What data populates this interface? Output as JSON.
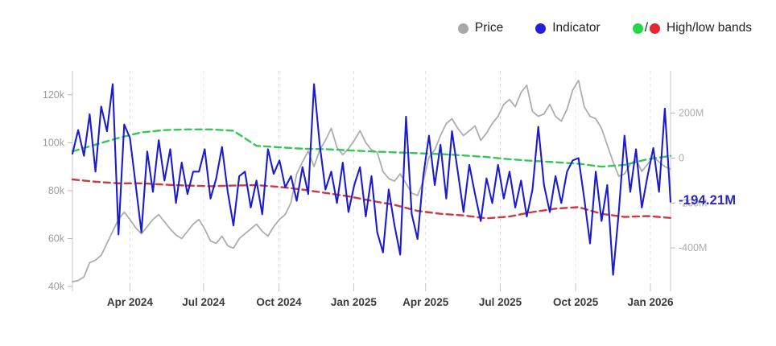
{
  "legend": {
    "items": [
      {
        "label": "Price",
        "color": "#a8a8a8"
      },
      {
        "label": "Indicator",
        "color": "#2121dd"
      },
      {
        "label": "High/low bands",
        "color_high": "#23d847",
        "color_low": "#ea2330",
        "separator": "/"
      }
    ]
  },
  "current_value": {
    "text": "-194.21M",
    "color": "#2a2ab5"
  },
  "chart_data": {
    "type": "line",
    "title": "",
    "xlabel": "",
    "ylabel_left": "Price",
    "ylabel_right": "Indicator",
    "x_unit": "weeks_from_start",
    "weeks": 105,
    "x_axis": {
      "ticks": [
        {
          "week": 10.0,
          "label": "Apr 2024"
        },
        {
          "week": 22.8,
          "label": "Jul 2024"
        },
        {
          "week": 35.9,
          "label": "Oct 2024"
        },
        {
          "week": 48.9,
          "label": "Jan 2025"
        },
        {
          "week": 61.4,
          "label": "Apr 2025"
        },
        {
          "week": 74.4,
          "label": "Jul 2025"
        },
        {
          "week": 87.5,
          "label": "Oct 2025"
        },
        {
          "week": 100.5,
          "label": "Jan 2026"
        }
      ]
    },
    "left_axis": {
      "unit": "k USD",
      "range": [
        38,
        130
      ],
      "ticks": [
        {
          "value": 120,
          "label": "120k"
        },
        {
          "value": 100,
          "label": "100k"
        },
        {
          "value": 80,
          "label": "80k"
        },
        {
          "value": 60,
          "label": "60k"
        },
        {
          "value": 40,
          "label": "40k"
        }
      ]
    },
    "right_axis": {
      "unit": "M USD",
      "range": [
        -593,
        389
      ],
      "ticks": [
        {
          "value": 200,
          "label": "200M"
        },
        {
          "value": 0,
          "label": "0"
        },
        {
          "value": -200,
          "label": "-200M"
        },
        {
          "value": -400,
          "label": "-400M"
        }
      ]
    },
    "grid": {
      "vertical_dashed": true,
      "horizontal": false,
      "color": "#e2e2e2"
    },
    "legend_position": "top-right",
    "series": [
      {
        "name": "Price",
        "axis": "left",
        "color": "#adadad",
        "style": "solid",
        "values": [
          42,
          42.5,
          44,
          50,
          51,
          53,
          58,
          63,
          68,
          71,
          68,
          64.5,
          62,
          65,
          68,
          70,
          67,
          64,
          61.5,
          60,
          63,
          66,
          68,
          64,
          59,
          58,
          61,
          57,
          56,
          60,
          62,
          64,
          66,
          63,
          61,
          65,
          68,
          70,
          75,
          87,
          92,
          96.5,
          90,
          97,
          101,
          106,
          98,
          95,
          97.5,
          101,
          105,
          100,
          97,
          96,
          88,
          85,
          84,
          87,
          83,
          79,
          78,
          84,
          94,
          97,
          103,
          108,
          110,
          106,
          103,
          105,
          107,
          101,
          104,
          108,
          111,
          116,
          118,
          115,
          121,
          124,
          113,
          111,
          112,
          116,
          111,
          109,
          114,
          122,
          126,
          115,
          111,
          110,
          106,
          99,
          92,
          86,
          87,
          91,
          93,
          88,
          91,
          94,
          92,
          90,
          89
        ]
      },
      {
        "name": "High band",
        "axis": "right",
        "color": "#36c758",
        "style": "dashed",
        "x": [
          0,
          4,
          8,
          12,
          16,
          20,
          24,
          28,
          32,
          36,
          40,
          44,
          48,
          52,
          56,
          60,
          64,
          68,
          72,
          76,
          80,
          84,
          88,
          92,
          96,
          100,
          104
        ],
        "values": [
          30,
          60,
          90,
          115,
          125,
          128,
          128,
          122,
          55,
          48,
          42,
          40,
          35,
          30,
          26,
          22,
          18,
          12,
          5,
          -5,
          -12,
          -18,
          -25,
          -38,
          -30,
          -5,
          10
        ]
      },
      {
        "name": "Low band",
        "axis": "right",
        "color": "#cc3a40",
        "style": "dashed",
        "x": [
          0,
          4,
          8,
          12,
          16,
          20,
          24,
          28,
          32,
          36,
          40,
          44,
          48,
          52,
          56,
          60,
          64,
          68,
          72,
          76,
          80,
          84,
          88,
          92,
          96,
          100,
          104
        ],
        "values": [
          -95,
          -105,
          -112,
          -112,
          -118,
          -122,
          -125,
          -122,
          -120,
          -128,
          -140,
          -155,
          -170,
          -190,
          -208,
          -235,
          -248,
          -255,
          -268,
          -260,
          -240,
          -225,
          -218,
          -248,
          -262,
          -258,
          -266
        ]
      },
      {
        "name": "Indicator",
        "axis": "right",
        "color": "#1c1ccd",
        "style": "solid",
        "values": [
          20,
          125,
          10,
          195,
          -60,
          230,
          120,
          330,
          -340,
          150,
          90,
          -120,
          -330,
          30,
          -150,
          80,
          -100,
          40,
          -200,
          -20,
          -160,
          -60,
          -60,
          40,
          -180,
          -90,
          50,
          -150,
          -300,
          -80,
          -60,
          -220,
          -100,
          -250,
          40,
          -70,
          -10,
          -130,
          -80,
          -190,
          -40,
          -160,
          330,
          60,
          -140,
          -60,
          -200,
          -20,
          -240,
          -120,
          -40,
          -260,
          -80,
          -330,
          -420,
          -140,
          -300,
          -430,
          185,
          -250,
          -360,
          -80,
          100,
          -120,
          60,
          -180,
          120,
          -60,
          -240,
          -30,
          -160,
          -280,
          -90,
          -200,
          -30,
          -180,
          -60,
          -220,
          -100,
          -260,
          -140,
          140,
          -120,
          -240,
          -80,
          -200,
          -60,
          -10,
          0,
          -180,
          -380,
          -60,
          -280,
          -120,
          -520,
          -240,
          100,
          -150,
          40,
          -220,
          -80,
          45,
          -150,
          221,
          -194.21
        ]
      }
    ]
  }
}
